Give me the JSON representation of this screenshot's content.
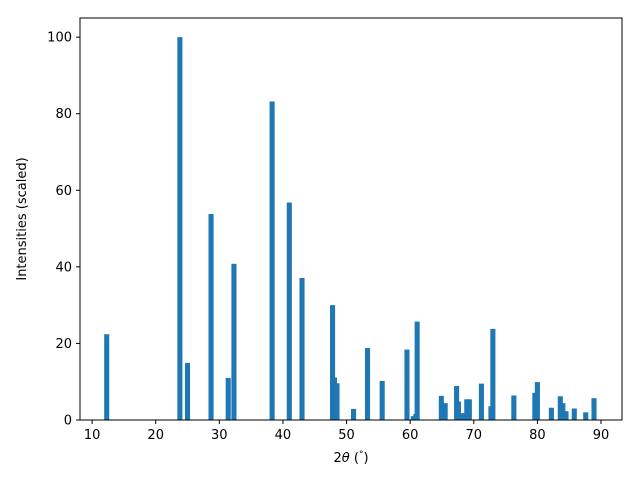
{
  "chart_data": {
    "type": "bar",
    "title": "",
    "xlabel": "2θ (°)",
    "xlabel_parts": {
      "prefix": "2",
      "theta": "θ",
      "open": " (",
      "degree": "°",
      "close": ")"
    },
    "ylabel": "Intensities (scaled)",
    "xlim": [
      8.1,
      93.3
    ],
    "ylim": [
      0,
      105
    ],
    "xticks": [
      10,
      20,
      30,
      40,
      50,
      60,
      70,
      80,
      90
    ],
    "yticks": [
      0,
      20,
      40,
      60,
      80,
      100
    ],
    "grid": false,
    "bar_color": "#1f77b4",
    "bar_width": 0.8,
    "series": [
      {
        "x": [
          12.3,
          23.8,
          25.0,
          28.7,
          31.4,
          32.3,
          38.3,
          41.0,
          43.0,
          47.8,
          48.1,
          48.5,
          51.1,
          53.3,
          55.6,
          59.5,
          60.5,
          60.9,
          61.1,
          64.9,
          65.5,
          67.3,
          67.6,
          68.4,
          68.9,
          69.3,
          71.2,
          72.7,
          73.0,
          76.3,
          79.6,
          80.0,
          82.2,
          83.6,
          84.0,
          84.5,
          85.8,
          87.6,
          88.9
        ],
        "values": [
          22.4,
          100,
          14.9,
          53.8,
          11.0,
          40.8,
          83.2,
          56.8,
          37.1,
          30.0,
          11.1,
          9.6,
          2.9,
          18.8,
          10.2,
          18.4,
          1.0,
          1.6,
          25.7,
          6.3,
          4.4,
          8.9,
          4.8,
          1.8,
          5.4,
          5.4,
          9.5,
          3.6,
          23.8,
          6.4,
          7.1,
          9.9,
          3.2,
          6.2,
          4.4,
          2.3,
          3.0,
          2.0,
          5.7
        ]
      }
    ]
  }
}
